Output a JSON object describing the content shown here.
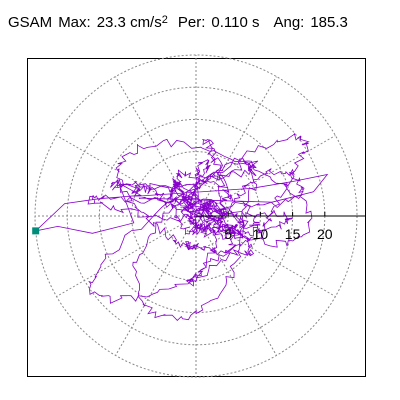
{
  "header": {
    "station": "GSAM",
    "max_label": "Max:",
    "max_value": "23.3 cm/s",
    "max_exp": "2",
    "per_label": "Per:",
    "per_value": "0.110 s",
    "ang_label": "Ang:",
    "ang_value": "185.3"
  },
  "colors": {
    "trace": "#8800cc",
    "marker": "#008c7a",
    "grid": "#888888",
    "axis": "#000000"
  },
  "chart_data": {
    "type": "polar-hodogram",
    "rings": [
      5,
      10,
      15,
      20
    ],
    "tick_labels": [
      "5",
      "10",
      "15",
      "20"
    ],
    "range_max": 23.3,
    "marker_angle_deg": 185.3,
    "grid": true
  }
}
